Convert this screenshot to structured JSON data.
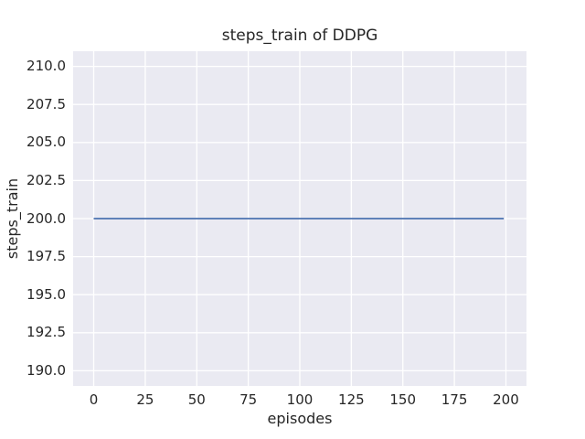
{
  "chart_data": {
    "type": "line",
    "title": "steps_train of DDPG",
    "xlabel": "episodes",
    "ylabel": "steps_train",
    "x_ticks": [
      0,
      25,
      50,
      75,
      100,
      125,
      150,
      175,
      200
    ],
    "x_tick_labels": [
      "0",
      "25",
      "50",
      "75",
      "100",
      "125",
      "150",
      "175",
      "200"
    ],
    "y_ticks": [
      190.0,
      192.5,
      195.0,
      197.5,
      200.0,
      202.5,
      205.0,
      207.5,
      210.0
    ],
    "y_tick_labels": [
      "190.0",
      "192.5",
      "195.0",
      "197.5",
      "200.0",
      "202.5",
      "205.0",
      "207.5",
      "210.0"
    ],
    "xlim": [
      -10,
      210
    ],
    "ylim": [
      189,
      211
    ],
    "grid": true,
    "legend": "none",
    "series": [
      {
        "name": "steps_train",
        "color": "#4c72b0",
        "x": [
          0,
          199
        ],
        "y": [
          200,
          200
        ]
      }
    ],
    "colors": {
      "figure_background": "#ffffff",
      "axes_background": "#eaeaf2",
      "grid": "#ffffff",
      "text": "#262626",
      "line": "#4c72b0"
    }
  }
}
